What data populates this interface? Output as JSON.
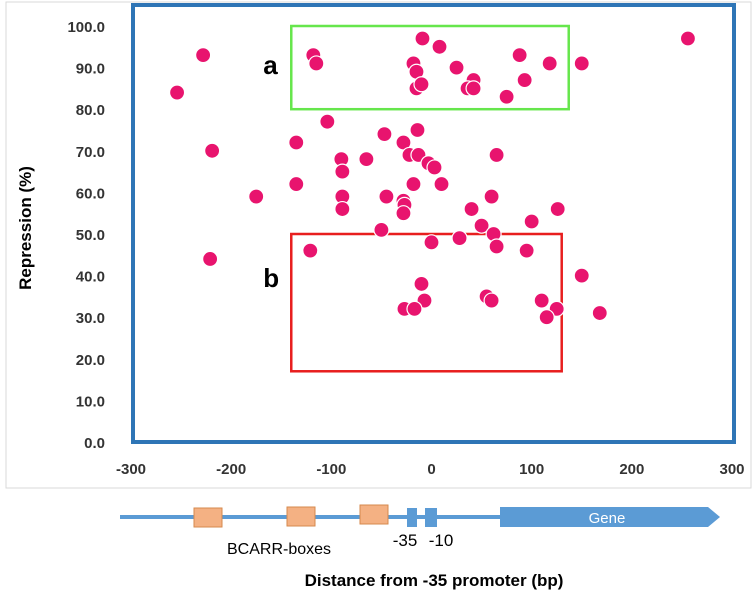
{
  "colors": {
    "point": "#E8146E",
    "point_edge": "#ffffff",
    "axis_frame": "#2E75B6",
    "box_a": "#66E64C",
    "box_b": "#E81E1E",
    "track": "#5B9BD5",
    "bcarr_box": "#F4B183",
    "bcarr_edge": "#D6894E",
    "gene_arrow": "#5B9BD5",
    "text": "#333333"
  },
  "chart_data": {
    "type": "scatter",
    "title": "",
    "xlabel": "Distance from -35 promoter (bp)",
    "ylabel": "Repression (%)",
    "xlim": [
      -300,
      300
    ],
    "ylim": [
      0,
      100
    ],
    "x_ticks": [
      -300,
      -200,
      -100,
      0,
      100,
      200,
      300
    ],
    "x_tick_labels": [
      "-300",
      "-200",
      "-100",
      "0",
      "100",
      "200",
      "300"
    ],
    "y_ticks": [
      0,
      10,
      20,
      30,
      40,
      50,
      60,
      70,
      80,
      90,
      100
    ],
    "y_tick_labels": [
      "0.0",
      "10.0",
      "20.0",
      "30.0",
      "40.0",
      "50.0",
      "60.0",
      "70.0",
      "80.0",
      "90.0",
      "100.0"
    ],
    "grid": false,
    "series": [
      {
        "points": [
          {
            "x": -228,
            "y": 93
          },
          {
            "x": -254,
            "y": 84
          },
          {
            "x": -118,
            "y": 93
          },
          {
            "x": -115,
            "y": 91
          },
          {
            "x": -18,
            "y": 91
          },
          {
            "x": -15,
            "y": 89
          },
          {
            "x": -9,
            "y": 97
          },
          {
            "x": 8,
            "y": 95
          },
          {
            "x": 25,
            "y": 90
          },
          {
            "x": 42,
            "y": 87
          },
          {
            "x": 88,
            "y": 93
          },
          {
            "x": 118,
            "y": 91
          },
          {
            "x": 150,
            "y": 91
          },
          {
            "x": 256,
            "y": 97
          },
          {
            "x": 36,
            "y": 85
          },
          {
            "x": 42,
            "y": 85
          },
          {
            "x": -15,
            "y": 85
          },
          {
            "x": -10,
            "y": 86
          },
          {
            "x": 75,
            "y": 83
          },
          {
            "x": 93,
            "y": 87
          },
          {
            "x": -104,
            "y": 77
          },
          {
            "x": -47,
            "y": 74
          },
          {
            "x": -14,
            "y": 75
          },
          {
            "x": -135,
            "y": 72
          },
          {
            "x": -28,
            "y": 72
          },
          {
            "x": -219,
            "y": 70
          },
          {
            "x": -90,
            "y": 68
          },
          {
            "x": -65,
            "y": 68
          },
          {
            "x": -22,
            "y": 69
          },
          {
            "x": -13,
            "y": 69
          },
          {
            "x": 65,
            "y": 69
          },
          {
            "x": -89,
            "y": 65
          },
          {
            "x": -3,
            "y": 67
          },
          {
            "x": 3,
            "y": 66
          },
          {
            "x": -135,
            "y": 62
          },
          {
            "x": -18,
            "y": 62
          },
          {
            "x": 10,
            "y": 62
          },
          {
            "x": -175,
            "y": 59
          },
          {
            "x": -89,
            "y": 59
          },
          {
            "x": -45,
            "y": 59
          },
          {
            "x": 60,
            "y": 59
          },
          {
            "x": -28,
            "y": 58
          },
          {
            "x": -27,
            "y": 57
          },
          {
            "x": -89,
            "y": 56
          },
          {
            "x": -28,
            "y": 55
          },
          {
            "x": 40,
            "y": 56
          },
          {
            "x": 126,
            "y": 56
          },
          {
            "x": 50,
            "y": 52
          },
          {
            "x": 100,
            "y": 53
          },
          {
            "x": -50,
            "y": 51
          },
          {
            "x": 62,
            "y": 50
          },
          {
            "x": 28,
            "y": 49
          },
          {
            "x": 0,
            "y": 48
          },
          {
            "x": 65,
            "y": 47
          },
          {
            "x": -121,
            "y": 46
          },
          {
            "x": 95,
            "y": 46
          },
          {
            "x": -221,
            "y": 44
          },
          {
            "x": 150,
            "y": 40
          },
          {
            "x": -10,
            "y": 38
          },
          {
            "x": 55,
            "y": 35
          },
          {
            "x": -7,
            "y": 34
          },
          {
            "x": 60,
            "y": 34
          },
          {
            "x": 110,
            "y": 34
          },
          {
            "x": -27,
            "y": 32
          },
          {
            "x": -17,
            "y": 32
          },
          {
            "x": 125,
            "y": 32
          },
          {
            "x": 115,
            "y": 30
          },
          {
            "x": 168,
            "y": 31
          }
        ]
      }
    ],
    "annotations": [
      {
        "label": "a",
        "region": {
          "x0": -140,
          "x1": 137,
          "y0": 80,
          "y1": 100
        }
      },
      {
        "label": "b",
        "region": {
          "x0": -140,
          "x1": 130,
          "y0": 17,
          "y1": 50
        }
      }
    ]
  },
  "promoter_map": {
    "bcarr_label": "BCARR-boxes",
    "minus35_label": "-35",
    "minus10_label": "-10",
    "gene_label": "Gene"
  }
}
